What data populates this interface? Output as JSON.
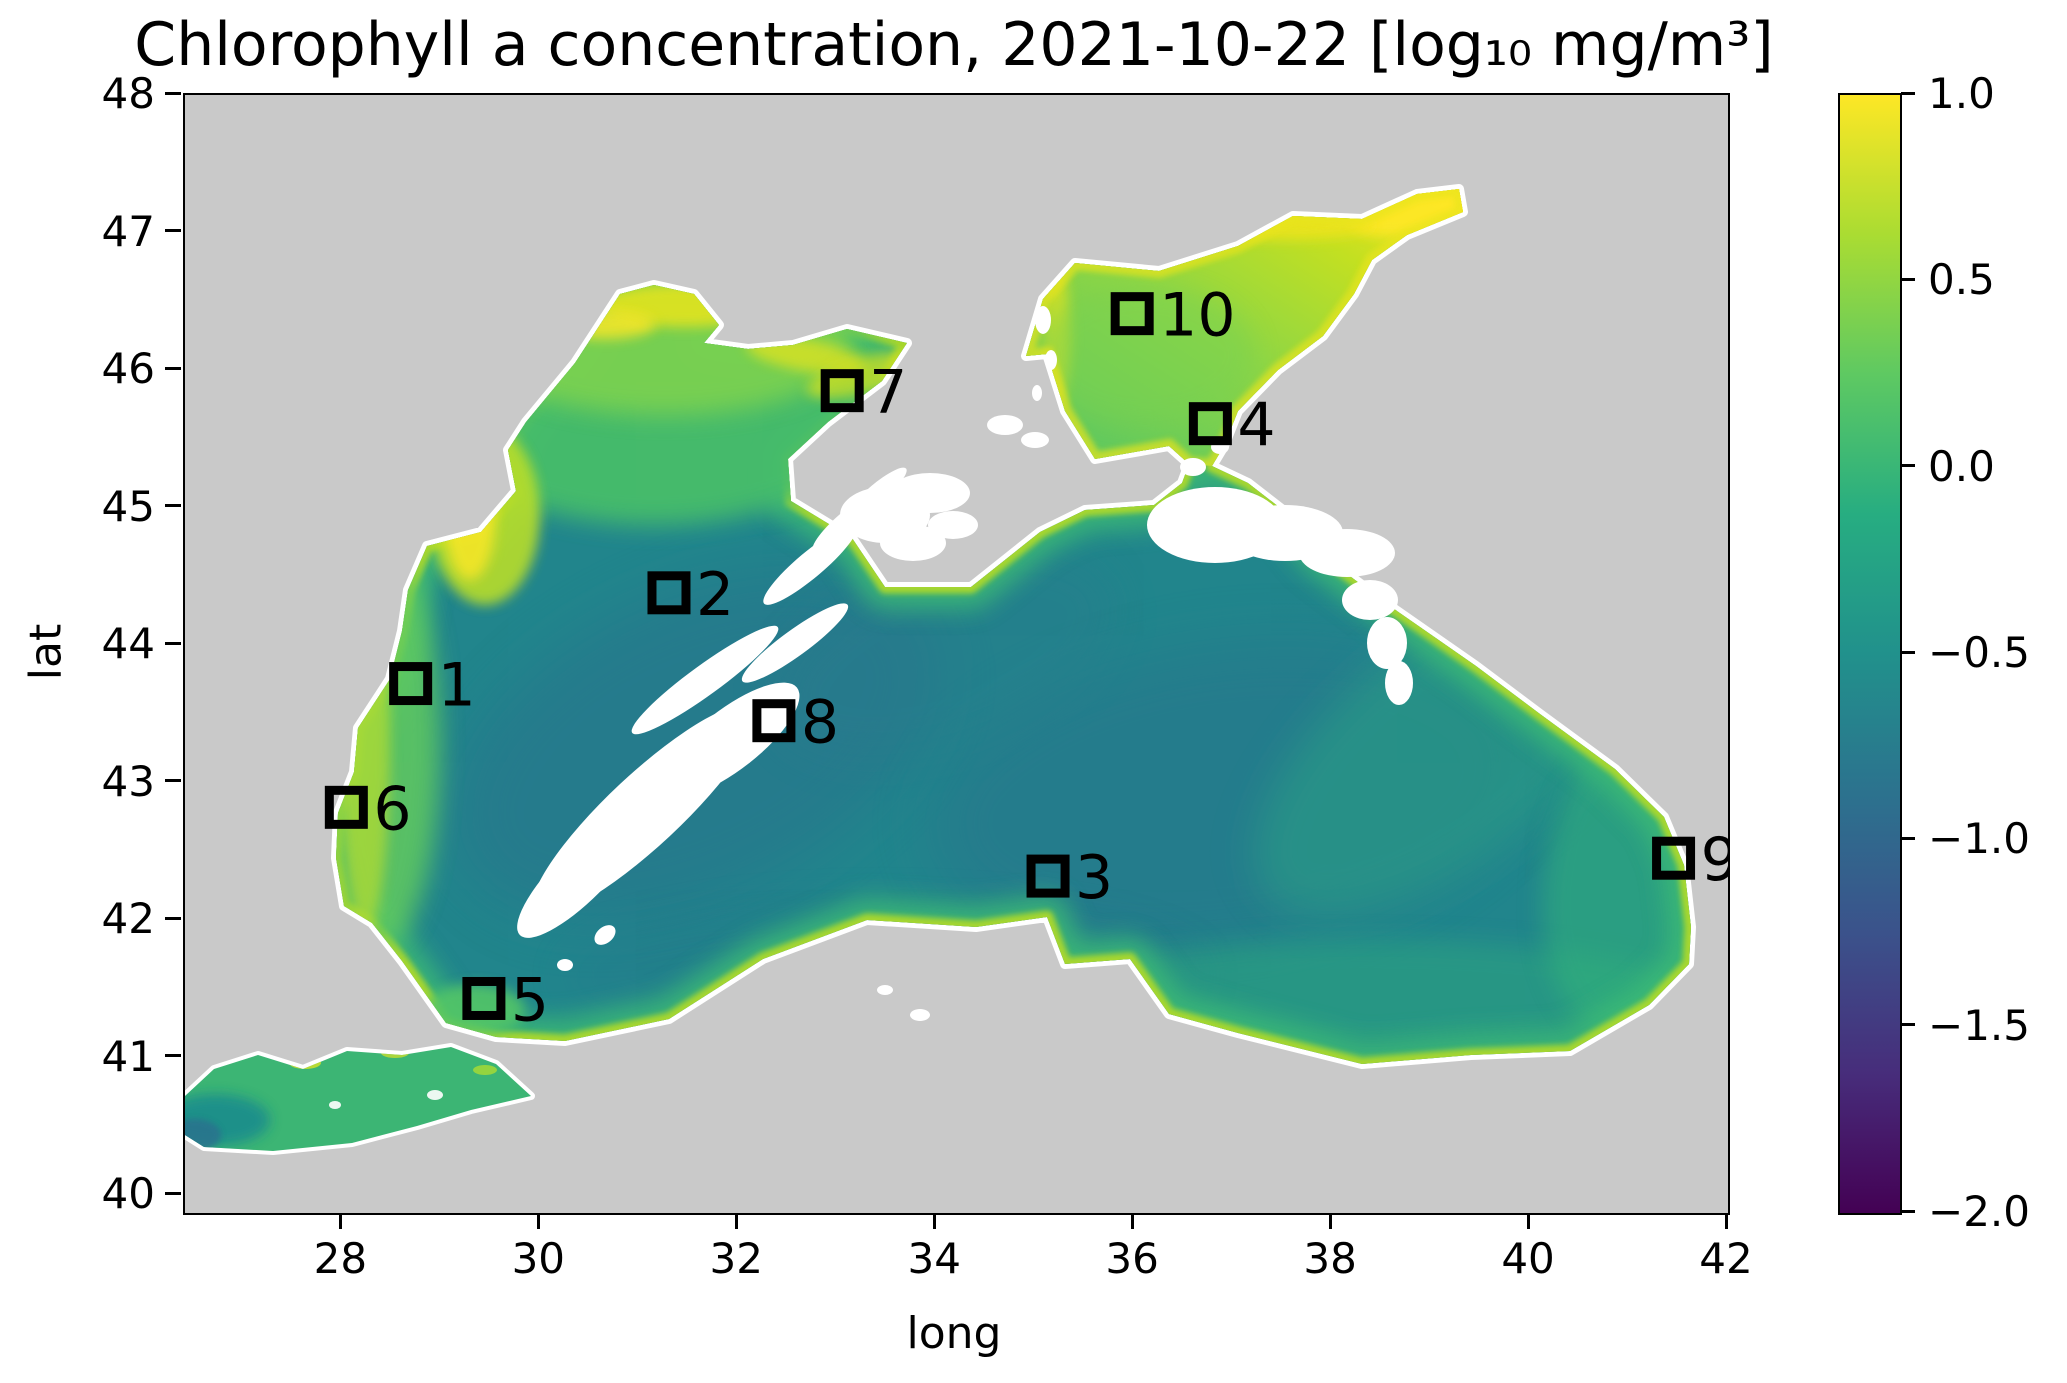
{
  "chart_data": {
    "type": "heatmap",
    "title": "Chlorophyll a concentration, 2021-10-22 [log₁₀ mg/m³]",
    "xlabel": "long",
    "ylabel": "lat",
    "xlim": [
      26.41,
      42.0
    ],
    "ylim": [
      39.87,
      48.0
    ],
    "x_ticks": [
      28,
      30,
      32,
      34,
      36,
      38,
      40,
      42
    ],
    "x_tick_labels": [
      "28",
      "30",
      "32",
      "34",
      "36",
      "38",
      "40",
      "42"
    ],
    "y_ticks": [
      40,
      41,
      42,
      43,
      44,
      45,
      46,
      47,
      48
    ],
    "y_tick_labels": [
      "40",
      "41",
      "42",
      "43",
      "44",
      "45",
      "46",
      "47",
      "48"
    ],
    "grid": false,
    "legend": "none",
    "colorbar": {
      "position": "right",
      "vmin": -2.0,
      "vmax": 1.0,
      "ticks": [
        1.0,
        0.5,
        0.0,
        -0.5,
        -1.0,
        -1.5,
        -2.0
      ],
      "tick_labels": [
        "1.0",
        "0.5",
        "0.0",
        "−0.5",
        "−1.0",
        "−1.5",
        "−2.0"
      ],
      "cmap": "viridis",
      "cmap_stops_top_to_bottom": [
        "#fde725",
        "#aadc32",
        "#5ec962",
        "#27ad81",
        "#21918c",
        "#2c728e",
        "#3b528b",
        "#472d7b",
        "#440154"
      ]
    },
    "stations": [
      {
        "id": "1",
        "lon": 28.69,
        "lat": 43.72
      },
      {
        "id": "2",
        "lon": 31.3,
        "lat": 44.38
      },
      {
        "id": "3",
        "lon": 35.13,
        "lat": 42.32
      },
      {
        "id": "4",
        "lon": 36.77,
        "lat": 45.61
      },
      {
        "id": "5",
        "lon": 29.43,
        "lat": 41.43
      },
      {
        "id": "6",
        "lon": 28.04,
        "lat": 42.82
      },
      {
        "id": "7",
        "lon": 33.05,
        "lat": 45.85
      },
      {
        "id": "8",
        "lon": 32.36,
        "lat": 43.45
      },
      {
        "id": "9",
        "lon": 41.45,
        "lat": 42.45
      },
      {
        "id": "10",
        "lon": 35.98,
        "lat": 46.41
      }
    ],
    "map_notes": {
      "region": "Black Sea with Sea of Azov and Sea of Marmara",
      "land_color": "#c9c9c9",
      "deep_basin_color": "#21858c",
      "shelf_green_color": "#46bd6b",
      "coastal_fringe_color": "#c3e01f",
      "azov_high_color": "#fde725",
      "cloud_color": "#ffffff",
      "approx_values": {
        "deep_basin": -0.7,
        "nw_shelf": 0.2,
        "sea_of_azov": 0.5,
        "azov_ne_tip": 1.0
      }
    }
  }
}
